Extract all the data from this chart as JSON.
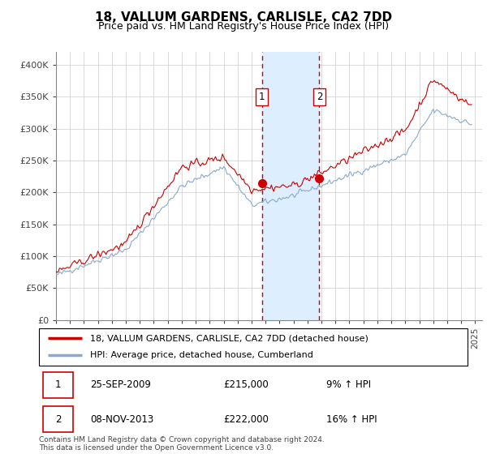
{
  "title": "18, VALLUM GARDENS, CARLISLE, CA2 7DD",
  "subtitle": "Price paid vs. HM Land Registry's House Price Index (HPI)",
  "hpi_label": "HPI: Average price, detached house, Cumberland",
  "property_label": "18, VALLUM GARDENS, CARLISLE, CA2 7DD (detached house)",
  "ylim": [
    0,
    420000
  ],
  "ylabel_ticks": [
    0,
    50000,
    100000,
    150000,
    200000,
    250000,
    300000,
    350000,
    400000
  ],
  "ylabel_labels": [
    "£0",
    "£50K",
    "£100K",
    "£150K",
    "£200K",
    "£250K",
    "£300K",
    "£350K",
    "£400K"
  ],
  "xlim_start": 1995.0,
  "xlim_end": 2025.5,
  "sale1_date": "25-SEP-2009",
  "sale1_price": 215000,
  "sale1_pct": "9%",
  "sale2_date": "08-NOV-2013",
  "sale2_price": 222000,
  "sale2_pct": "16%",
  "sale1_year": 2009.73,
  "sale2_year": 2013.85,
  "property_color": "#cc0000",
  "hpi_color": "#88aacc",
  "shade_color": "#ddeeff",
  "vline_color": "#cc0000",
  "box_color": "#cc0000",
  "grid_color": "#cccccc",
  "footnote": "Contains HM Land Registry data © Crown copyright and database right 2024.\nThis data is licensed under the Open Government Licence v3.0."
}
